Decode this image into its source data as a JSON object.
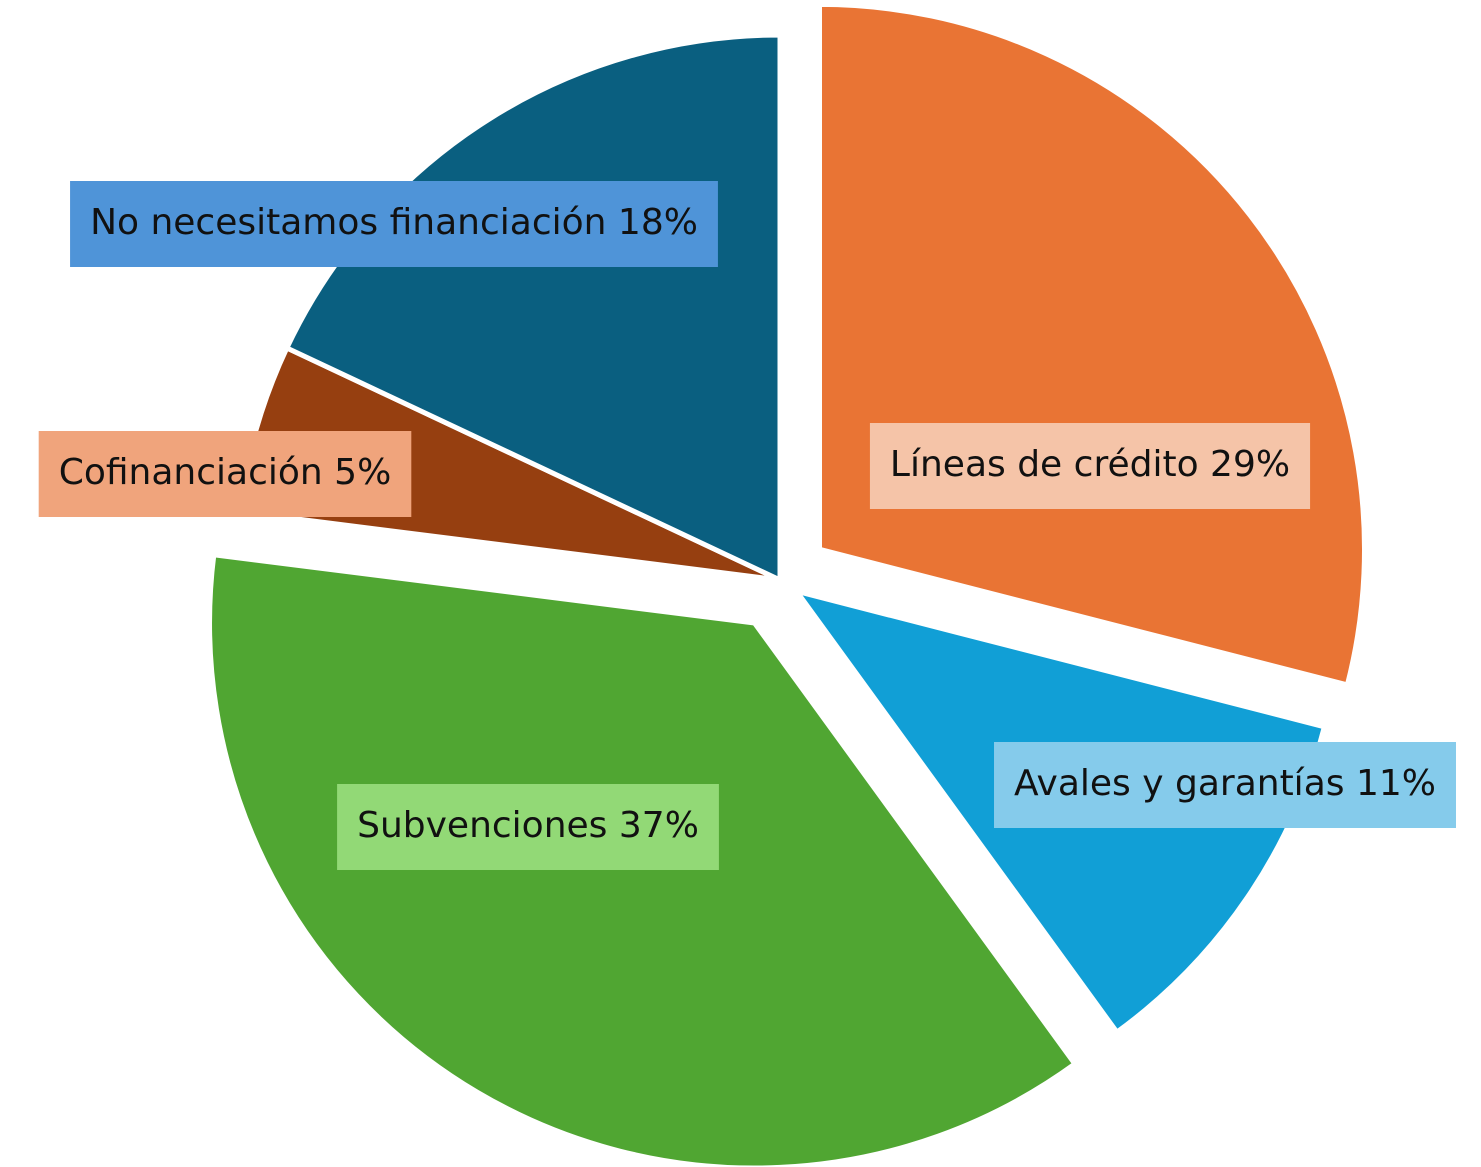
{
  "chart_data": {
    "type": "pie",
    "categories": [
      "Líneas de crédito",
      "Avales y garantías",
      "Subvenciones",
      "Cofinanciación",
      "No necesitamos financiación"
    ],
    "values": [
      29,
      11,
      37,
      5,
      18
    ],
    "value_labels": [
      "29%",
      "11%",
      "37%",
      "5%",
      "18%"
    ],
    "colors": [
      "#e97434",
      "#119fd6",
      "#50a632",
      "#963f10",
      "#0a5f80"
    ],
    "label_colors": [
      "#f5c4a8",
      "#85cbeb",
      "#92d976",
      "#f0a47c",
      "#4f94d8"
    ]
  }
}
